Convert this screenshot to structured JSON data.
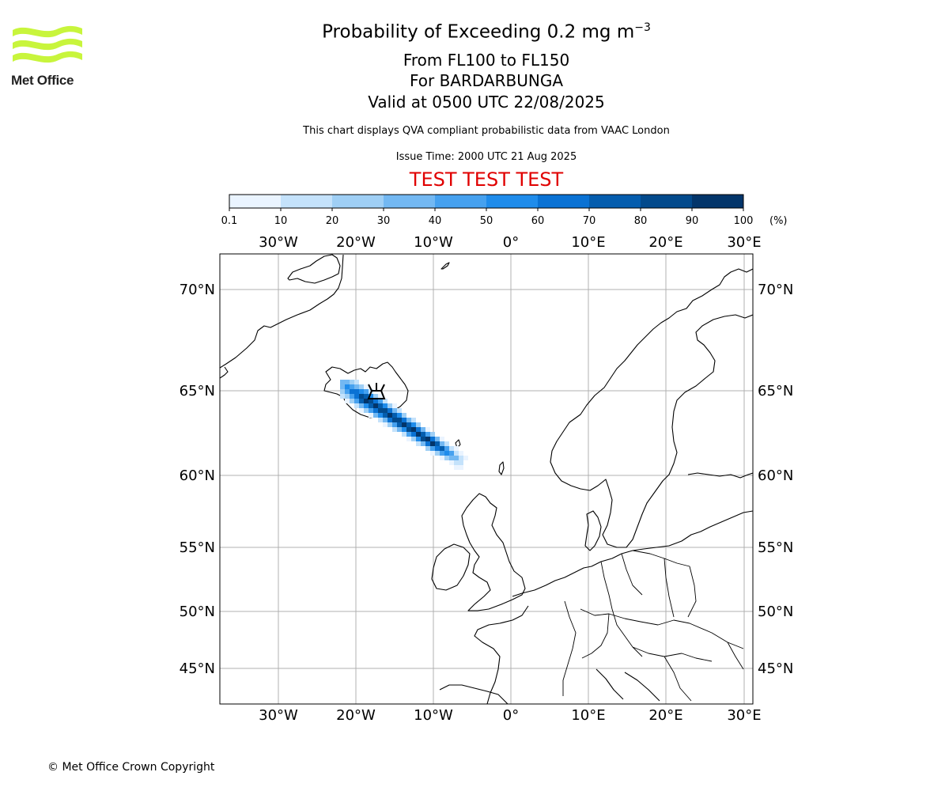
{
  "header": {
    "title_main": "Probability of Exceeding 0.2 mg m",
    "title_exponent": "−3",
    "line1": "From FL100 to FL150",
    "line2": "For BARDARBUNGA",
    "line3": "Valid at 0500 UTC 22/08/2025",
    "info": "This chart displays QVA compliant probabilistic data from VAAC London",
    "issue_time": "Issue Time: 2000 UTC 21 Aug 2025",
    "test_banner": "TEST TEST TEST"
  },
  "logo": {
    "text": "Met Office",
    "color": "#c8f53c"
  },
  "colorbar": {
    "ticks": [
      "0.1",
      "10",
      "20",
      "30",
      "40",
      "50",
      "60",
      "70",
      "80",
      "90",
      "100"
    ],
    "unit": "(%)",
    "colors": [
      "#eaf4ff",
      "#c4e2fb",
      "#9fcff5",
      "#73b8f2",
      "#46a1ef",
      "#1f8ceb",
      "#0a72d4",
      "#045dae",
      "#034a8c",
      "#03356a"
    ]
  },
  "map": {
    "lon_ticks_top": [
      "30°W",
      "20°W",
      "10°W",
      "0°",
      "10°E",
      "20°E",
      "30°E"
    ],
    "lon_ticks_bottom": [
      "30°W",
      "20°W",
      "10°W",
      "0°",
      "10°E",
      "20°E",
      "30°E"
    ],
    "lat_ticks_left": [
      "70°N",
      "65°N",
      "60°N",
      "55°N",
      "50°N",
      "45°N"
    ],
    "lat_ticks_right": [
      "70°N",
      "65°N",
      "60°N",
      "55°N",
      "50°N",
      "45°N"
    ],
    "volcano": "BARDARBUNGA"
  },
  "footer": {
    "copyright": "© Met Office Crown Copyright"
  }
}
